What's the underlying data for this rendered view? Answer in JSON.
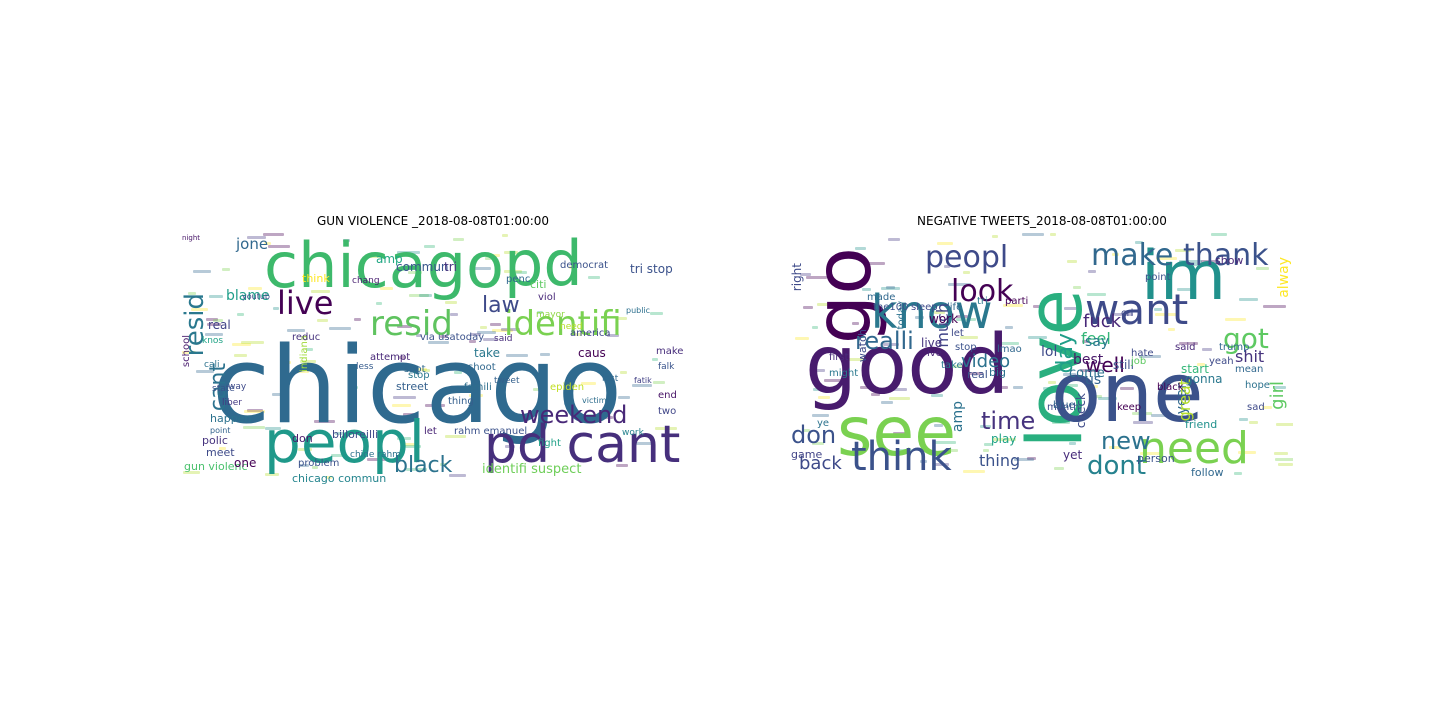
{
  "figure": {
    "panels": [
      {
        "title": "GUN VIOLENCE _2018-08-08T01:00:00",
        "words": [
          {
            "text": "chicago",
            "color": "#2f6a8f"
          },
          {
            "text": "chicago",
            "color": "#3db96b"
          },
          {
            "text": "pd",
            "color": "#3db96b"
          },
          {
            "text": "peopl",
            "color": "#1f998a"
          },
          {
            "text": "pd cant",
            "color": "#462f7c"
          },
          {
            "text": "resid",
            "color": "#5fc35f"
          },
          {
            "text": "identifi",
            "color": "#7ad151"
          },
          {
            "text": "live",
            "color": "#440154"
          },
          {
            "text": "resid",
            "color": "#2a788e"
          },
          {
            "text": "cant",
            "color": "#2c728e"
          },
          {
            "text": "weekend",
            "color": "#482878"
          },
          {
            "text": "black",
            "color": "#2c738e"
          },
          {
            "text": "law",
            "color": "#3e4a89"
          },
          {
            "text": "identifi suspect",
            "color": "#6ece58"
          },
          {
            "text": "gun violenc",
            "color": "#4ac16d"
          },
          {
            "text": "chicago commun",
            "color": "#25858e"
          },
          {
            "text": "jone",
            "color": "#31688e"
          },
          {
            "text": "amp",
            "color": "#22a884"
          },
          {
            "text": "commun",
            "color": "#39568c"
          },
          {
            "text": "tri",
            "color": "#46337e"
          },
          {
            "text": "democrat",
            "color": "#3b528b"
          },
          {
            "text": "citi",
            "color": "#5ec962"
          },
          {
            "text": "mayor",
            "color": "#8fd744"
          },
          {
            "text": "problem",
            "color": "#3b528b"
          },
          {
            "text": "one",
            "color": "#440154"
          },
          {
            "text": "billoreilli",
            "color": "#3e4a89"
          },
          {
            "text": "rahm emanuel",
            "color": "#3b528b"
          },
          {
            "text": "street",
            "color": "#35608d"
          },
          {
            "text": "penc",
            "color": "#31688e"
          },
          {
            "text": "caus",
            "color": "#440154"
          },
          {
            "text": "make",
            "color": "#472d7b"
          },
          {
            "text": "school",
            "color": "#481b6d"
          },
          {
            "text": "blame",
            "color": "#1f9e89"
          },
          {
            "text": "real",
            "color": "#414487"
          },
          {
            "text": "attempt",
            "color": "#482878"
          },
          {
            "text": "end",
            "color": "#481467"
          },
          {
            "text": "take",
            "color": "#2a788e"
          },
          {
            "text": "via usatoday",
            "color": "#3b528b"
          },
          {
            "text": "shot",
            "color": "#31688e"
          },
          {
            "text": "happen",
            "color": "#2c728e"
          },
          {
            "text": "polic",
            "color": "#46337e"
          },
          {
            "text": "meet",
            "color": "#3e4a89"
          },
          {
            "text": "think",
            "color": "#fde725"
          },
          {
            "text": "viol",
            "color": "#482878"
          },
          {
            "text": "two",
            "color": "#404688"
          },
          {
            "text": "fight",
            "color": "#1fa187"
          },
          {
            "text": "tri stop",
            "color": "#3b528b"
          },
          {
            "text": "indiana",
            "color": "#a0da39"
          },
          {
            "text": "chide rahm",
            "color": "#2c728e"
          },
          {
            "text": "reduc",
            "color": "#46337e"
          },
          {
            "text": "chang",
            "color": "#481f70"
          },
          {
            "text": "less",
            "color": "#365c8d"
          },
          {
            "text": "america",
            "color": "#3f4788"
          },
          {
            "text": "need",
            "color": "#b5de2b"
          },
          {
            "text": "lost",
            "color": "#31688e"
          },
          {
            "text": "famili",
            "color": "#2e6e8e"
          },
          {
            "text": "work",
            "color": "#26828e"
          },
          {
            "text": "epiden",
            "color": "#c2df23"
          },
          {
            "text": "don",
            "color": "#481a6c"
          },
          {
            "text": "way",
            "color": "#3e4a89"
          },
          {
            "text": "stop",
            "color": "#2a788e"
          },
          {
            "text": "thing",
            "color": "#355f8d"
          },
          {
            "text": "let",
            "color": "#482475"
          },
          {
            "text": "knos",
            "color": "#20a386"
          },
          {
            "text": "cali",
            "color": "#2c728e"
          },
          {
            "text": "state",
            "color": "#3b528b"
          },
          {
            "text": "liber",
            "color": "#443983"
          },
          {
            "text": "point",
            "color": "#33638d"
          },
          {
            "text": "night",
            "color": "#481769"
          },
          {
            "text": "public",
            "color": "#2d708e"
          },
          {
            "text": "youtub",
            "color": "#3f4889"
          },
          {
            "text": "victim",
            "color": "#2e6e8e"
          },
          {
            "text": "fatik",
            "color": "#424186"
          },
          {
            "text": "said",
            "color": "#472c7a"
          },
          {
            "text": "tweet",
            "color": "#34618d"
          },
          {
            "text": "shoot",
            "color": "#31688e"
          },
          {
            "text": "falk",
            "color": "#3a548c"
          }
        ]
      },
      {
        "title": "NEGATIVE TWEETS_2018-08-08T01:00:00",
        "words": [
          {
            "text": "go",
            "color": "#440154"
          },
          {
            "text": "love",
            "color": "#29af7f"
          },
          {
            "text": "im",
            "color": "#21918c"
          },
          {
            "text": "good",
            "color": "#481b6d"
          },
          {
            "text": "one",
            "color": "#3b528b"
          },
          {
            "text": "see",
            "color": "#7ad151"
          },
          {
            "text": "know",
            "color": "#2a788e"
          },
          {
            "text": "want",
            "color": "#3e4a89"
          },
          {
            "text": "think",
            "color": "#3b528b"
          },
          {
            "text": "need",
            "color": "#7ad151"
          },
          {
            "text": "peopl",
            "color": "#3e4a89"
          },
          {
            "text": "make",
            "color": "#31688e"
          },
          {
            "text": "thank",
            "color": "#3b528b"
          },
          {
            "text": "look",
            "color": "#440154"
          },
          {
            "text": "got",
            "color": "#5ec962"
          },
          {
            "text": "dont",
            "color": "#26828e"
          },
          {
            "text": "new",
            "color": "#2c728e"
          },
          {
            "text": "time",
            "color": "#46337e"
          },
          {
            "text": "realli",
            "color": "#31688e"
          },
          {
            "text": "don",
            "color": "#3b528b"
          },
          {
            "text": "back",
            "color": "#3e4a89"
          },
          {
            "text": "day",
            "color": "#1f9e89"
          },
          {
            "text": "fuck",
            "color": "#482878"
          },
          {
            "text": "feel",
            "color": "#35b779"
          },
          {
            "text": "well",
            "color": "#440154"
          },
          {
            "text": "girl",
            "color": "#5ec962"
          },
          {
            "text": "shit",
            "color": "#46337e"
          },
          {
            "text": "year",
            "color": "#31688e"
          },
          {
            "text": "thing",
            "color": "#3b528b"
          },
          {
            "text": "say",
            "color": "#2a788e"
          },
          {
            "text": "lol",
            "color": "#3e4a89"
          },
          {
            "text": "video",
            "color": "#2c728e"
          },
          {
            "text": "much",
            "color": "#414487"
          },
          {
            "text": "alway",
            "color": "#fde725"
          },
          {
            "text": "great",
            "color": "#b5de2b"
          },
          {
            "text": "us",
            "color": "#33638d"
          },
          {
            "text": "best",
            "color": "#481769"
          },
          {
            "text": "come",
            "color": "#2d708e"
          },
          {
            "text": "check",
            "color": "#3e4a89"
          },
          {
            "text": "play",
            "color": "#20a386"
          },
          {
            "text": "yet",
            "color": "#472c7a"
          },
          {
            "text": "amp",
            "color": "#2c728e"
          },
          {
            "text": "right",
            "color": "#3e4a89"
          },
          {
            "text": "work",
            "color": "#440154"
          },
          {
            "text": "start",
            "color": "#35b779"
          },
          {
            "text": "still",
            "color": "#3b528b"
          },
          {
            "text": "gonna",
            "color": "#2a788e"
          },
          {
            "text": "friend",
            "color": "#21918c"
          },
          {
            "text": "follow",
            "color": "#31688e"
          },
          {
            "text": "better",
            "color": "#3b528b"
          },
          {
            "text": "show",
            "color": "#482878"
          },
          {
            "text": "watch",
            "color": "#3e4a89"
          },
          {
            "text": "live",
            "color": "#46337e"
          },
          {
            "text": "big",
            "color": "#2c728e"
          },
          {
            "text": "game",
            "color": "#414487"
          },
          {
            "text": "made",
            "color": "#31688e"
          },
          {
            "text": "month",
            "color": "#3e4a89"
          },
          {
            "text": "real",
            "color": "#3b528b"
          },
          {
            "text": "ive",
            "color": "#482475"
          },
          {
            "text": "lmao",
            "color": "#31688e"
          },
          {
            "text": "let",
            "color": "#3e4a89"
          },
          {
            "text": "take",
            "color": "#2a788e"
          },
          {
            "text": "today",
            "color": "#2c728e"
          },
          {
            "text": "sleep",
            "color": "#3e4a89"
          },
          {
            "text": "the100",
            "color": "#3b528b"
          },
          {
            "text": "first",
            "color": "#472d7b"
          },
          {
            "text": "might",
            "color": "#2a788e"
          },
          {
            "text": "hate",
            "color": "#3e4a89"
          },
          {
            "text": "life",
            "color": "#31688e"
          },
          {
            "text": "point",
            "color": "#3b528b"
          },
          {
            "text": "blue",
            "color": "#33638d"
          },
          {
            "text": "keep",
            "color": "#440154"
          },
          {
            "text": "yeah",
            "color": "#3e4a89"
          },
          {
            "text": "person",
            "color": "#3b528b"
          },
          {
            "text": "mean",
            "color": "#31688e"
          },
          {
            "text": "sad",
            "color": "#3e4a89"
          },
          {
            "text": "hope",
            "color": "#2c728e"
          },
          {
            "text": "black",
            "color": "#440154"
          },
          {
            "text": "trump",
            "color": "#31688e"
          },
          {
            "text": "said",
            "color": "#482878"
          },
          {
            "text": "job",
            "color": "#5ec962"
          },
          {
            "text": "stop",
            "color": "#3b528b"
          },
          {
            "text": "tri",
            "color": "#2a788e"
          },
          {
            "text": "parti",
            "color": "#440154"
          },
          {
            "text": "cri",
            "color": "#3e4a89"
          },
          {
            "text": "ye",
            "color": "#2c728e"
          }
        ]
      }
    ]
  }
}
